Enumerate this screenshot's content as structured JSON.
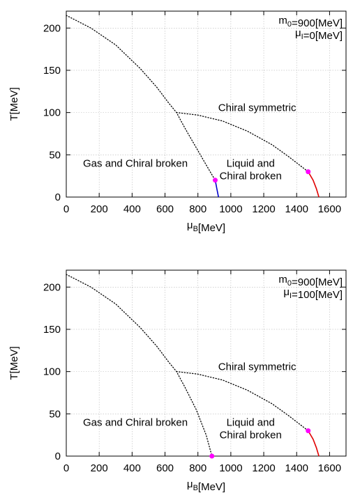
{
  "chart_data": [
    {
      "type": "line",
      "xlabel": "μ_B[MeV]",
      "ylabel": "T[MeV]",
      "xlim": [
        0,
        1700
      ],
      "ylim": [
        0,
        220
      ],
      "xticks": [
        0,
        200,
        400,
        600,
        800,
        1000,
        1200,
        1400,
        1600
      ],
      "yticks": [
        0,
        50,
        100,
        150,
        200
      ],
      "grid": true,
      "params": [
        "m_0=900[MeV]",
        "μ_I=0[MeV]"
      ],
      "regions": [
        {
          "text": [
            "Chiral symmetric"
          ],
          "x": 1160,
          "y": 106
        },
        {
          "text": [
            "Gas and Chiral broken"
          ],
          "x": 420,
          "y": 40
        },
        {
          "text": [
            "Liquid and",
            "Chiral broken"
          ],
          "x": 1120,
          "y": 40
        }
      ],
      "series": [
        {
          "style": "dotted",
          "color": "#000000",
          "x": [
            0,
            150,
            300,
            450,
            550,
            620,
            670,
            720,
            800,
            880,
            905
          ],
          "y": [
            215,
            200,
            180,
            152,
            130,
            112,
            100,
            82,
            55,
            28,
            20
          ]
        },
        {
          "style": "dotted",
          "color": "#000000",
          "x": [
            670,
            800,
            950,
            1100,
            1250,
            1350,
            1470
          ],
          "y": [
            100,
            97,
            90,
            78,
            62,
            48,
            30
          ]
        },
        {
          "style": "solid",
          "color": "#0000cc",
          "x": [
            905,
            915,
            925
          ],
          "y": [
            20,
            10,
            0
          ]
        },
        {
          "style": "solid",
          "color": "#e00000",
          "x": [
            1470,
            1500,
            1520,
            1535
          ],
          "y": [
            30,
            20,
            10,
            0
          ]
        }
      ],
      "points": [
        {
          "x": 905,
          "y": 20,
          "color": "#ff00ff"
        },
        {
          "x": 1470,
          "y": 30,
          "color": "#ff00ff"
        }
      ]
    },
    {
      "type": "line",
      "xlabel": "μ_B[MeV]",
      "ylabel": "T[MeV]",
      "xlim": [
        0,
        1700
      ],
      "ylim": [
        0,
        220
      ],
      "xticks": [
        0,
        200,
        400,
        600,
        800,
        1000,
        1200,
        1400,
        1600
      ],
      "yticks": [
        0,
        50,
        100,
        150,
        200
      ],
      "grid": true,
      "params": [
        "m_0=900[MeV]",
        "μ_I=100[MeV]"
      ],
      "regions": [
        {
          "text": [
            "Chiral symmetric"
          ],
          "x": 1160,
          "y": 106
        },
        {
          "text": [
            "Gas and Chiral broken"
          ],
          "x": 420,
          "y": 40
        },
        {
          "text": [
            "Liquid and",
            "Chiral broken"
          ],
          "x": 1120,
          "y": 40
        }
      ],
      "series": [
        {
          "style": "dotted",
          "color": "#000000",
          "x": [
            0,
            150,
            300,
            450,
            550,
            620,
            670,
            720,
            790,
            850,
            885
          ],
          "y": [
            215,
            200,
            180,
            152,
            130,
            112,
            100,
            82,
            55,
            25,
            0
          ]
        },
        {
          "style": "dotted",
          "color": "#000000",
          "x": [
            670,
            800,
            950,
            1100,
            1250,
            1350,
            1470
          ],
          "y": [
            100,
            97,
            90,
            78,
            62,
            48,
            30
          ]
        },
        {
          "style": "solid",
          "color": "#e00000",
          "x": [
            1470,
            1500,
            1520,
            1535
          ],
          "y": [
            30,
            20,
            10,
            0
          ]
        }
      ],
      "points": [
        {
          "x": 885,
          "y": 0,
          "color": "#ff00ff"
        },
        {
          "x": 1470,
          "y": 30,
          "color": "#ff00ff"
        }
      ]
    }
  ]
}
